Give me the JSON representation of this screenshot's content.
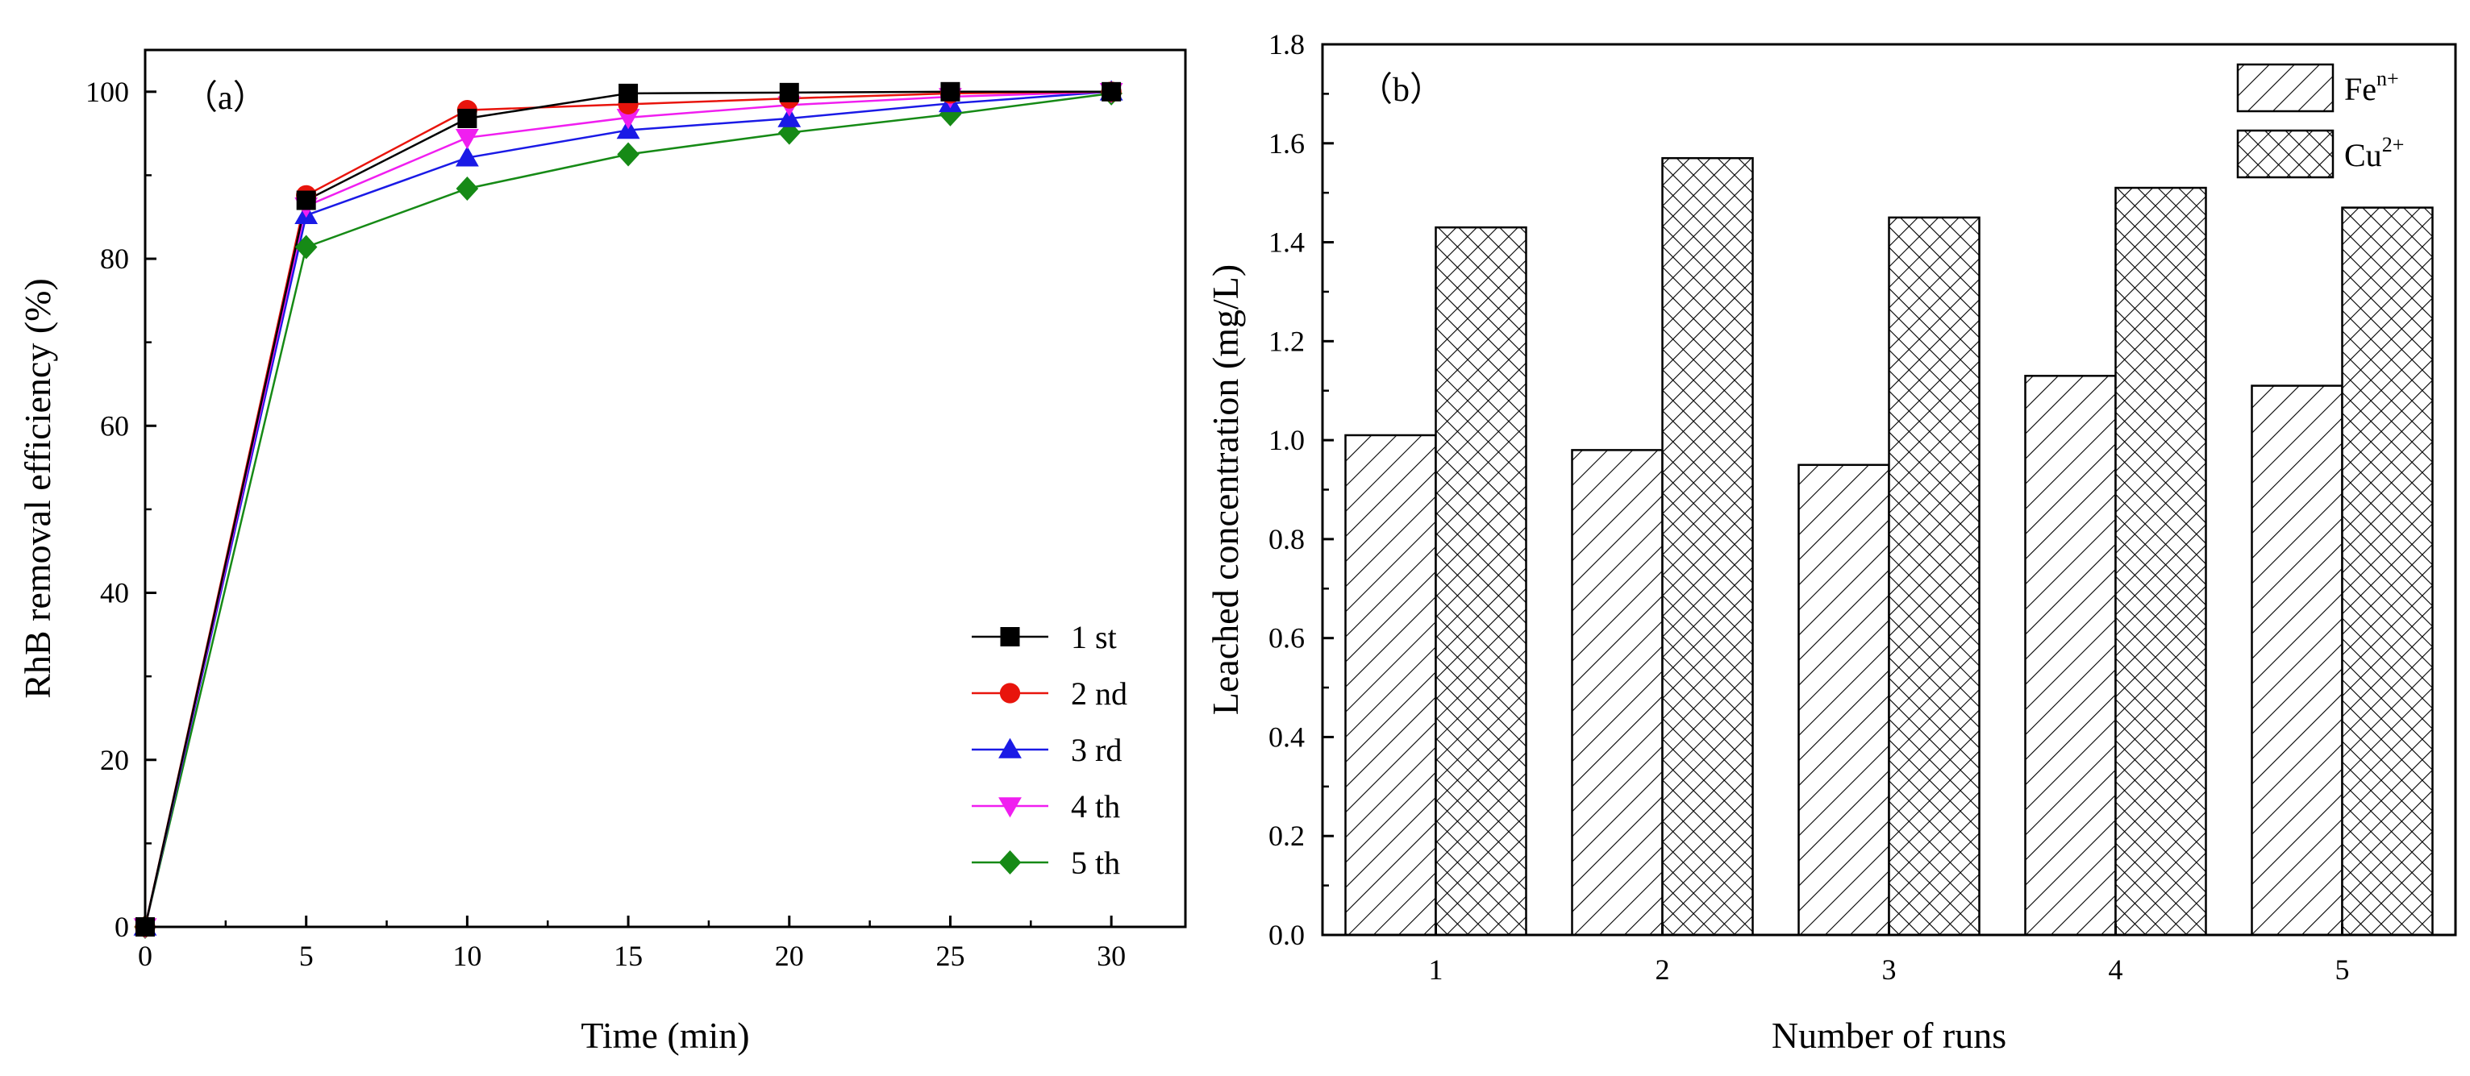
{
  "chart_data": [
    {
      "type": "line",
      "panel_label": "（a）",
      "title": "",
      "xlabel": "Time (min)",
      "ylabel": "RhB removal efficiency (%)",
      "xlim": [
        0,
        32.3
      ],
      "ylim": [
        0,
        105
      ],
      "x_ticks": [
        0,
        5,
        10,
        15,
        20,
        25,
        30
      ],
      "y_ticks": [
        0,
        20,
        40,
        60,
        80,
        100
      ],
      "legend_position": "lower-right",
      "x": [
        0,
        5,
        10,
        15,
        20,
        25,
        30
      ],
      "series": [
        {
          "name": "1 st",
          "color": "#000000",
          "marker": "square",
          "values": [
            0,
            87.0,
            96.8,
            99.8,
            99.9,
            100.0,
            100.0
          ]
        },
        {
          "name": "2 nd",
          "color": "#e8140c",
          "marker": "circle",
          "values": [
            0,
            87.6,
            97.8,
            98.5,
            99.2,
            99.8,
            100.0
          ]
        },
        {
          "name": "3 rd",
          "color": "#1a1ae6",
          "marker": "triangle-up",
          "values": [
            0,
            85.2,
            92.1,
            95.4,
            96.8,
            98.6,
            100.0
          ]
        },
        {
          "name": "4 th",
          "color": "#f01ef0",
          "marker": "triangle-down",
          "values": [
            0,
            86.3,
            94.5,
            96.9,
            98.4,
            99.4,
            100.0
          ]
        },
        {
          "name": "5 th",
          "color": "#168a16",
          "marker": "diamond",
          "values": [
            0,
            81.4,
            88.4,
            92.5,
            95.1,
            97.3,
            99.8
          ]
        }
      ]
    },
    {
      "type": "bar",
      "panel_label": "（b）",
      "title": "",
      "xlabel": "Number of runs",
      "ylabel": "Leached concentration (mg/L)",
      "ylim": [
        0,
        1.8
      ],
      "y_ticks": [
        "0.0",
        "0.2",
        "0.4",
        "0.6",
        "0.8",
        "1.0",
        "1.2",
        "1.4",
        "1.6",
        "1.8"
      ],
      "categories": [
        "1",
        "2",
        "3",
        "4",
        "5"
      ],
      "legend_position": "top-right",
      "series": [
        {
          "name": "Fe",
          "superscript": "n+",
          "pattern": "diagonal-hatch",
          "values": [
            1.01,
            0.98,
            0.95,
            1.13,
            1.11
          ]
        },
        {
          "name": "Cu",
          "superscript": "2+",
          "pattern": "cross-hatch",
          "values": [
            1.43,
            1.57,
            1.45,
            1.51,
            1.47
          ]
        }
      ]
    }
  ]
}
